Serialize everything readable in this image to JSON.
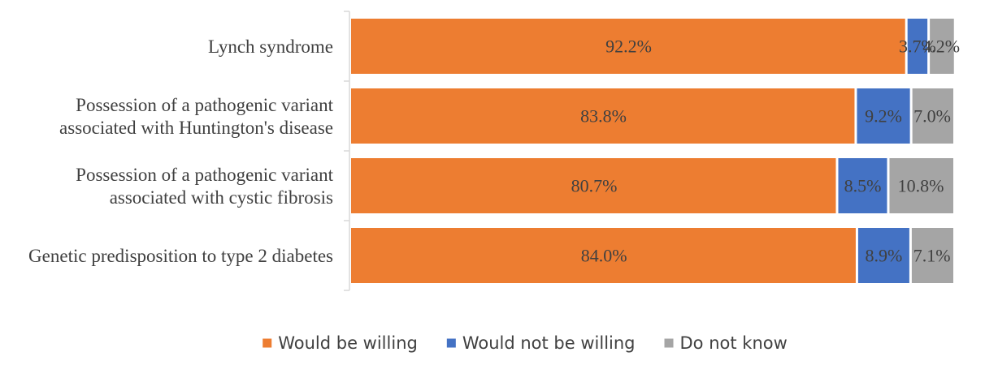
{
  "chart_data": {
    "type": "bar",
    "orientation": "horizontal",
    "stacked": "percent",
    "categories": [
      [
        "Lynch syndrome"
      ],
      [
        "Possession of a pathogenic variant",
        "associated with Huntington's disease"
      ],
      [
        "Possession of a pathogenic variant",
        "associated with cystic fibrosis"
      ],
      [
        "Genetic predisposition to type 2 diabetes"
      ]
    ],
    "series": [
      {
        "name": "Would be willing",
        "color": "#ED7D31",
        "values": [
          92.2,
          83.8,
          80.7,
          84.0
        ],
        "labels": [
          "92.2%",
          "83.8%",
          "80.7%",
          "84.0%"
        ]
      },
      {
        "name": "Would not be willing",
        "color": "#4472C4",
        "values": [
          3.7,
          9.2,
          8.5,
          8.9
        ],
        "labels": [
          "3.7%",
          "9.2%",
          "8.5%",
          "8.9%"
        ]
      },
      {
        "name": "Do not know",
        "color": "#A5A5A5",
        "values": [
          4.2,
          7.0,
          10.8,
          7.1
        ],
        "labels": [
          "4.2%",
          "7.0%",
          "10.8%",
          "7.1%"
        ]
      }
    ],
    "xlim": [
      0,
      100
    ],
    "grid": false,
    "legend": "bottom",
    "title": "",
    "xlabel": "",
    "ylabel": ""
  }
}
